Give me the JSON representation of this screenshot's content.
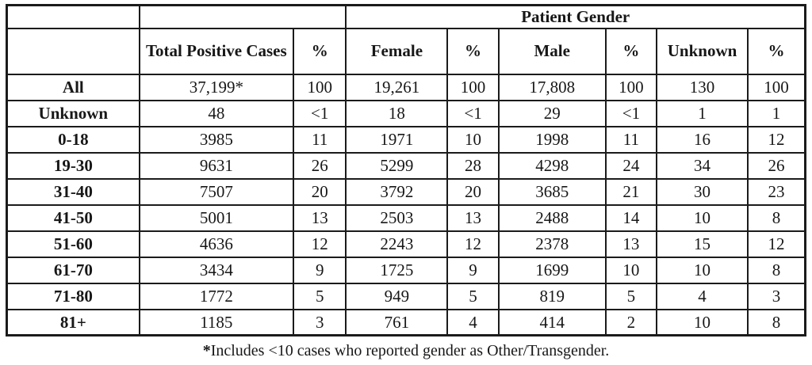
{
  "chart_data": {
    "type": "table",
    "title": "Patient Gender",
    "group_header": {
      "label": "Patient Gender",
      "spans_columns": [
        "Female",
        "%",
        "Male",
        "%",
        "Unknown",
        "%"
      ]
    },
    "column_headers": [
      "",
      "Total Positive Cases",
      "%",
      "Female",
      "%",
      "Male",
      "%",
      "Unknown",
      "%"
    ],
    "rows": [
      {
        "label": "All",
        "cells": [
          "37,199*",
          "100",
          "19,261",
          "100",
          "17,808",
          "100",
          "130",
          "100"
        ]
      },
      {
        "label": "Unknown",
        "cells": [
          "48",
          "<1",
          "18",
          "<1",
          "29",
          "<1",
          "1",
          "1"
        ]
      },
      {
        "label": "0-18",
        "cells": [
          "3985",
          "11",
          "1971",
          "10",
          "1998",
          "11",
          "16",
          "12"
        ]
      },
      {
        "label": "19-30",
        "cells": [
          "9631",
          "26",
          "5299",
          "28",
          "4298",
          "24",
          "34",
          "26"
        ]
      },
      {
        "label": "31-40",
        "cells": [
          "7507",
          "20",
          "3792",
          "20",
          "3685",
          "21",
          "30",
          "23"
        ]
      },
      {
        "label": "41-50",
        "cells": [
          "5001",
          "13",
          "2503",
          "13",
          "2488",
          "14",
          "10",
          "8"
        ]
      },
      {
        "label": "51-60",
        "cells": [
          "4636",
          "12",
          "2243",
          "12",
          "2378",
          "13",
          "15",
          "12"
        ]
      },
      {
        "label": "61-70",
        "cells": [
          "3434",
          "9",
          "1725",
          "9",
          "1699",
          "10",
          "10",
          "8"
        ]
      },
      {
        "label": "71-80",
        "cells": [
          "1772",
          "5",
          "949",
          "5",
          "819",
          "5",
          "4",
          "3"
        ]
      },
      {
        "label": "81+",
        "cells": [
          "1185",
          "3",
          "761",
          "4",
          "414",
          "2",
          "10",
          "8"
        ]
      }
    ],
    "footnote_marker": "*",
    "footnote_text": "Includes <10 cases who reported gender as Other/Transgender.",
    "layout": {
      "grid": "on",
      "column_width_percents": [
        16.6,
        19.3,
        6.6,
        12.7,
        6.4,
        13.4,
        6.4,
        11.4,
        7.2
      ]
    },
    "colors": {
      "border": "#1b1b1b",
      "text": "#171717",
      "background": "#ffffff"
    }
  }
}
